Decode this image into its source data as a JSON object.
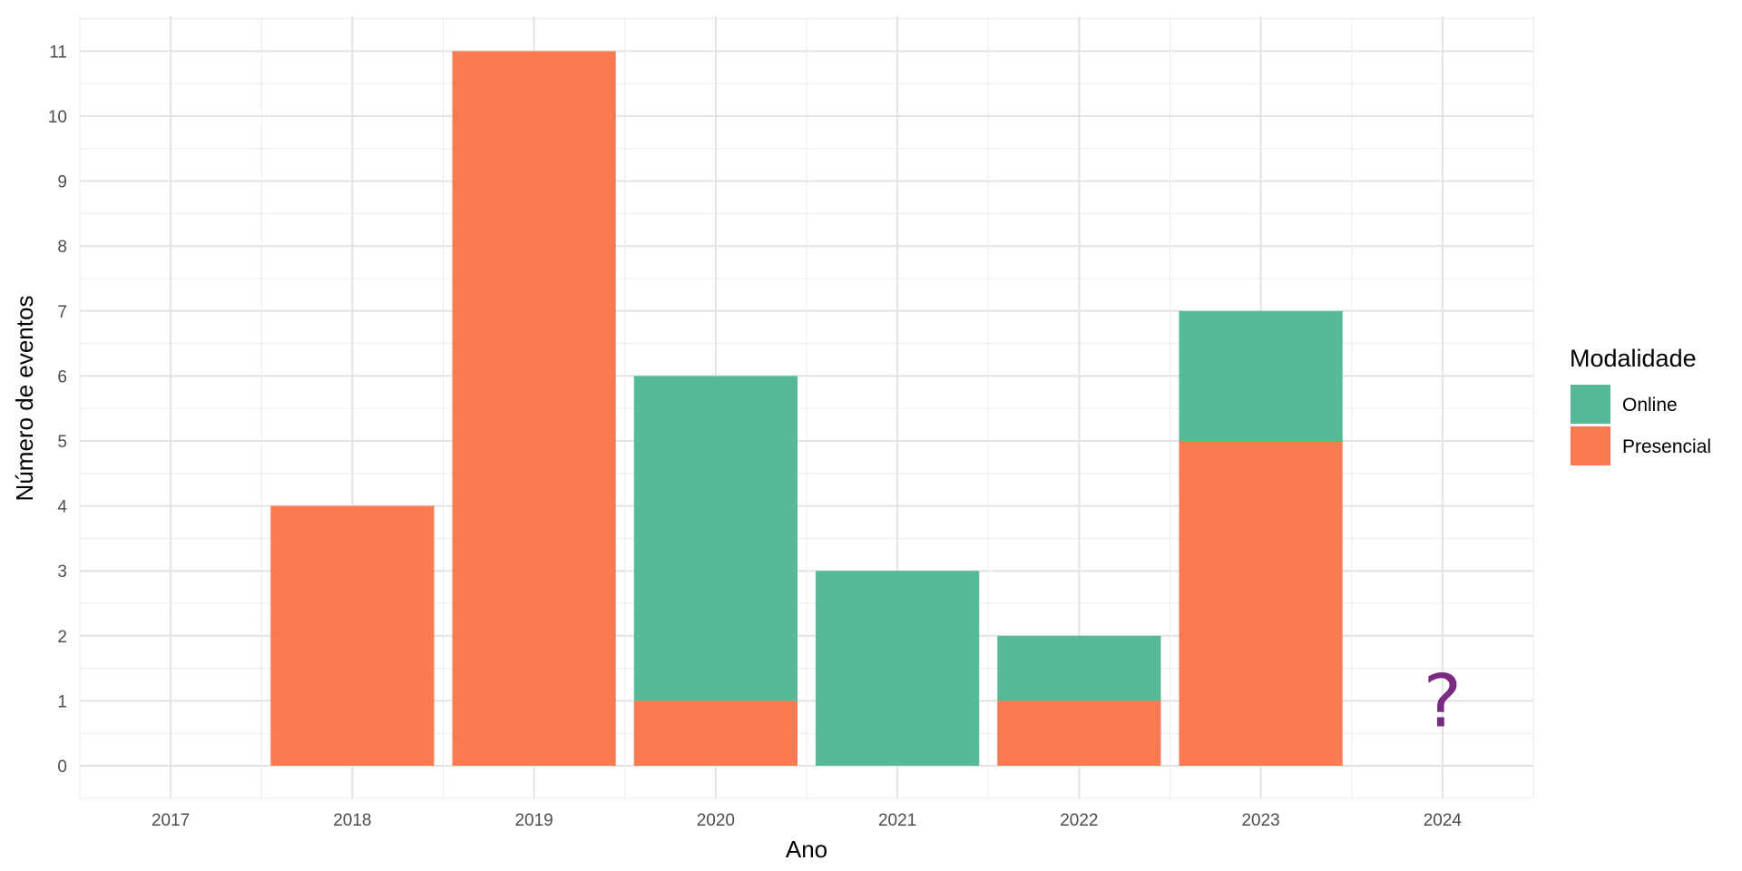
{
  "chart_data": {
    "type": "bar",
    "stacked": true,
    "categories": [
      "2017",
      "2018",
      "2019",
      "2020",
      "2021",
      "2022",
      "2023",
      "2024"
    ],
    "series": [
      {
        "name": "Online",
        "color": "#57BA96",
        "values": [
          0,
          0,
          0,
          5,
          3,
          1,
          2,
          0
        ]
      },
      {
        "name": "Presencial",
        "color": "#FA7A52",
        "values": [
          0,
          4,
          11,
          1,
          0,
          1,
          5,
          0
        ]
      }
    ],
    "xlabel": "Ano",
    "ylabel": "Número de eventos",
    "ylim": [
      -0.5,
      11.5
    ],
    "yticks": [
      0,
      1,
      2,
      3,
      4,
      5,
      6,
      7,
      8,
      9,
      10,
      11
    ],
    "grid": true,
    "legend": {
      "title": "Modalidade",
      "position": "right"
    },
    "annotation": {
      "text": "?",
      "category": "2024",
      "value": 1,
      "color": "#7A2A82"
    }
  }
}
